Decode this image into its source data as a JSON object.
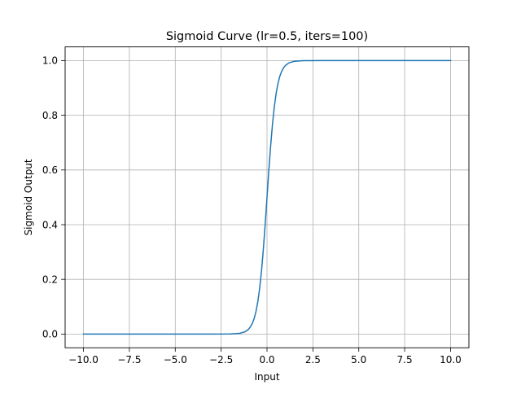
{
  "chart_data": {
    "type": "line",
    "title": "Sigmoid Curve (lr=0.5, iters=100)",
    "xlabel": "Input",
    "ylabel": "Sigmoid Output",
    "xlim": [
      -11,
      11
    ],
    "ylim": [
      -0.05,
      1.05
    ],
    "x_ticks": [
      -10,
      -7.5,
      -5,
      -2.5,
      0,
      2.5,
      5,
      7.5,
      10
    ],
    "x_tick_labels": [
      "−10.0",
      "−7.5",
      "−5.0",
      "−2.5",
      "0.0",
      "2.5",
      "5.0",
      "7.5",
      "10.0"
    ],
    "y_ticks": [
      0,
      0.2,
      0.4,
      0.6,
      0.8,
      1.0
    ],
    "y_tick_labels": [
      "0.0",
      "0.2",
      "0.4",
      "0.6",
      "0.8",
      "1.0"
    ],
    "grid": true,
    "series": [
      {
        "color": "#1f77b4",
        "x": [
          -10,
          -9,
          -8,
          -7,
          -6,
          -5,
          -4,
          -3,
          -2,
          -1.5,
          -1.2,
          -1.0,
          -0.9,
          -0.8,
          -0.7,
          -0.6,
          -0.5,
          -0.4,
          -0.3,
          -0.2,
          -0.1,
          0,
          0.1,
          0.2,
          0.3,
          0.4,
          0.5,
          0.6,
          0.7,
          0.8,
          0.9,
          1.0,
          1.2,
          1.5,
          2,
          3,
          4,
          5,
          6,
          7,
          8,
          9,
          10
        ],
        "y": [
          0,
          0,
          0,
          0,
          0,
          0,
          0,
          0,
          0.0003,
          0.0025,
          0.0082,
          0.018,
          0.027,
          0.039,
          0.057,
          0.083,
          0.119,
          0.168,
          0.231,
          0.31,
          0.401,
          0.5,
          0.599,
          0.69,
          0.769,
          0.832,
          0.881,
          0.917,
          0.943,
          0.961,
          0.973,
          0.982,
          0.9918,
          0.9975,
          0.9997,
          1,
          1,
          1,
          1,
          1,
          1,
          1,
          1
        ]
      }
    ]
  }
}
